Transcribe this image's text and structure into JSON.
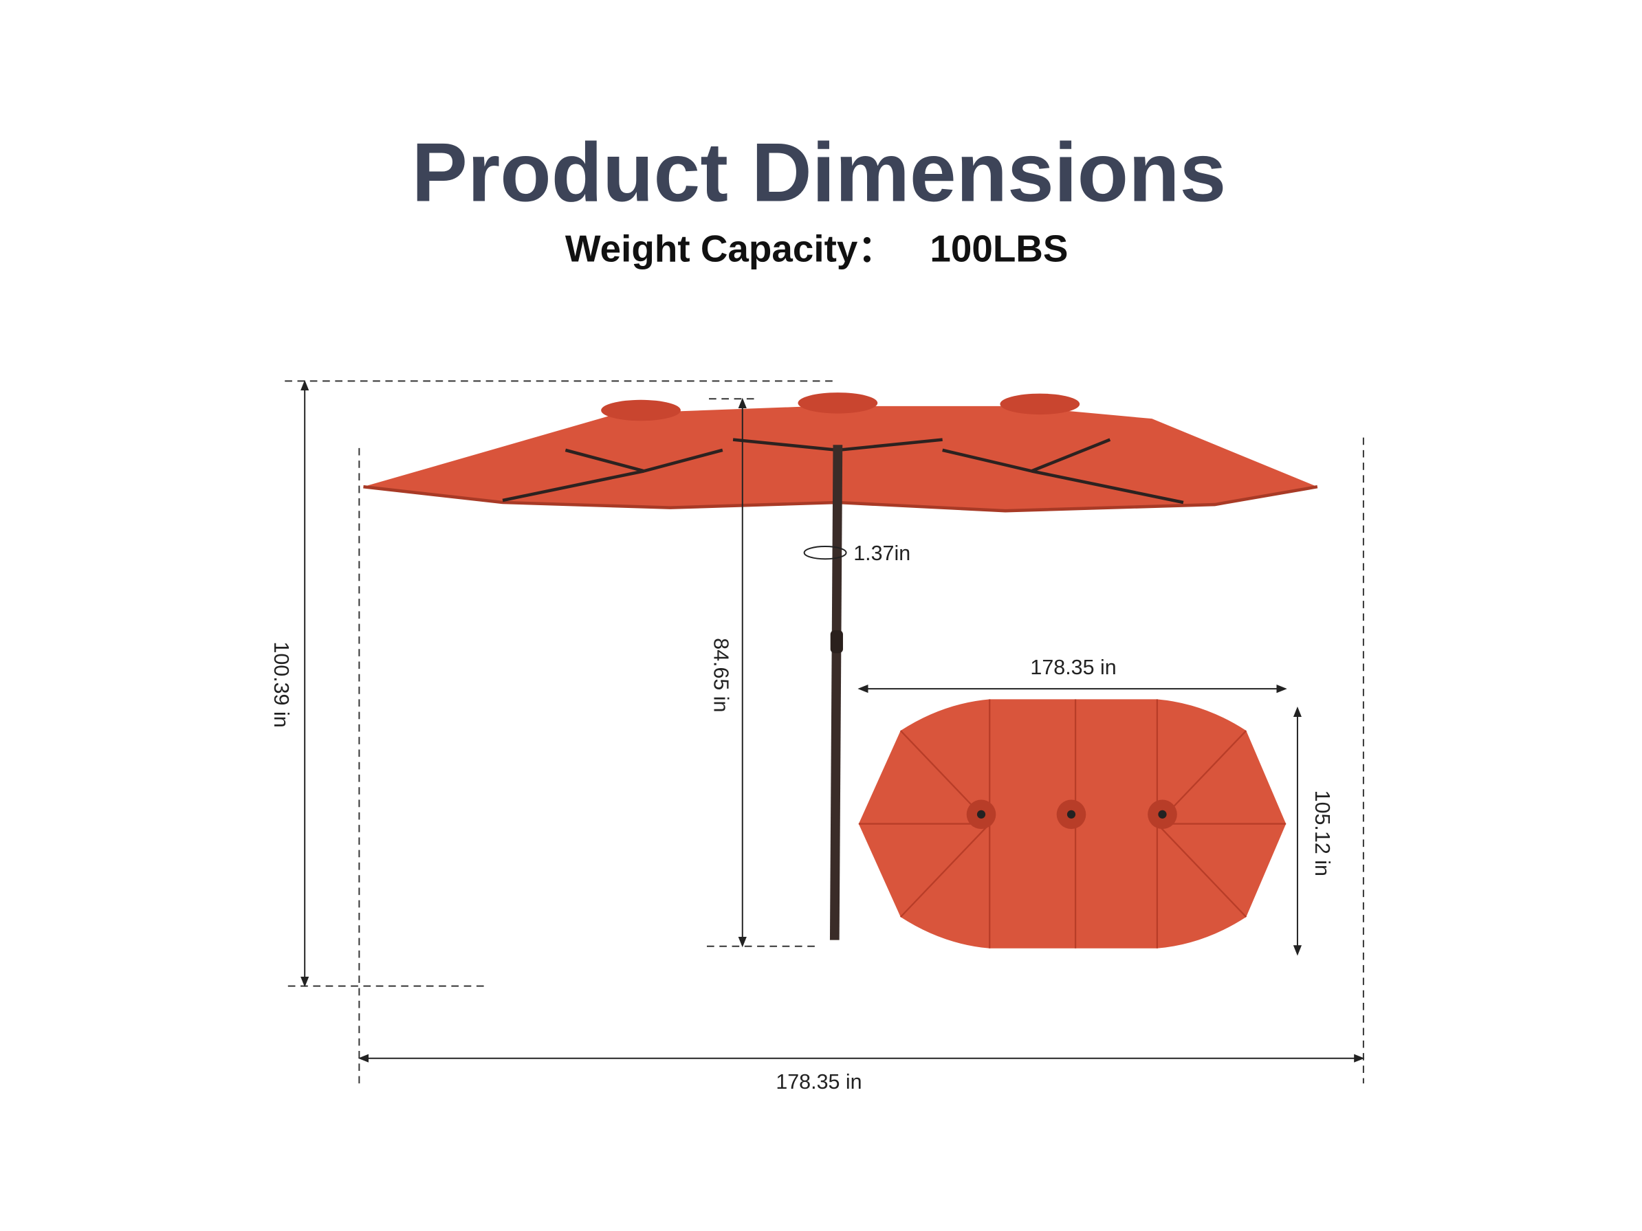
{
  "header": {
    "title": "Product Dimensions",
    "subtitle": "Weight Capacity：",
    "capacity": "100LBS"
  },
  "dimensions": {
    "pole_diameter": "1.37in",
    "pole_height": "84.65 in",
    "total_height": "100.39 in",
    "total_width": "178.35 in",
    "top_width": "178.35 in",
    "top_depth": "105.12 in"
  }
}
